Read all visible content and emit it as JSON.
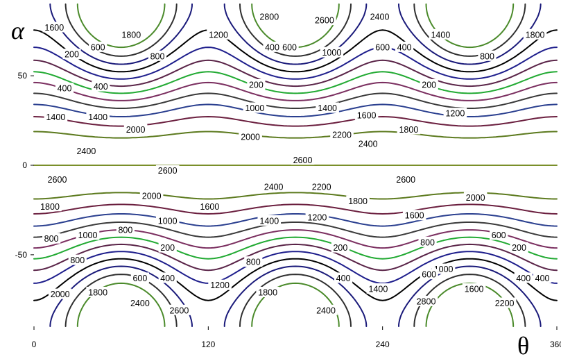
{
  "chart_data": {
    "type": "contour",
    "title": "",
    "xlabel": "θ",
    "ylabel": "α",
    "xlim": [
      0,
      360
    ],
    "ylim": [
      -90,
      90
    ],
    "x_ticks": [
      "0",
      "120",
      "240",
      "360"
    ],
    "y_ticks": [
      "50",
      "0",
      "-50"
    ],
    "grid": false,
    "legend": "none",
    "function": "z = 1400 + 1200*cos(2*alpha) + 240*cos(3*theta)*(1 - cos(2*alpha))",
    "levels": [
      200,
      400,
      600,
      800,
      1000,
      1200,
      1400,
      1600,
      1800,
      2000,
      2200,
      2400,
      2600,
      2800
    ],
    "level_colors": [
      "#4a8a2a",
      "#2f2f2f",
      "#1a1a7a",
      "#000000",
      "#1e1e8c",
      "#5a2448",
      "#22aa33",
      "#7b2f60",
      "#3a3a3a",
      "#2a3f8f",
      "#6b1f3f",
      "#5c7a1e",
      "#7a8f2a",
      "#2f6bbf"
    ],
    "minima_centers": [
      {
        "theta": 20,
        "alpha": 60
      },
      {
        "theta": 140,
        "alpha": 60
      },
      {
        "theta": 260,
        "alpha": 60
      },
      {
        "theta": 80,
        "alpha": -60
      },
      {
        "theta": 200,
        "alpha": -60
      },
      {
        "theta": 320,
        "alpha": -60
      }
    ],
    "contour_labels": [
      {
        "text": "2800",
        "theta": 162,
        "alpha": 83
      },
      {
        "text": "2600",
        "theta": 200,
        "alpha": 81
      },
      {
        "text": "2400",
        "theta": 238,
        "alpha": 83
      },
      {
        "text": "1600",
        "theta": 14,
        "alpha": 77
      },
      {
        "text": "1800",
        "theta": 67,
        "alpha": 73
      },
      {
        "text": "1200",
        "theta": 127,
        "alpha": 73
      },
      {
        "text": "1400",
        "theta": 280,
        "alpha": 73
      },
      {
        "text": "1800",
        "theta": 345,
        "alpha": 73
      },
      {
        "text": "600",
        "theta": 44,
        "alpha": 66
      },
      {
        "text": "400",
        "theta": 164,
        "alpha": 66
      },
      {
        "text": "600",
        "theta": 176,
        "alpha": 66
      },
      {
        "text": "600",
        "theta": 240,
        "alpha": 66
      },
      {
        "text": "400",
        "theta": 255,
        "alpha": 66
      },
      {
        "text": "200",
        "theta": 26,
        "alpha": 62
      },
      {
        "text": "800",
        "theta": 85,
        "alpha": 61
      },
      {
        "text": "1000",
        "theta": 205,
        "alpha": 63
      },
      {
        "text": "800",
        "theta": 312,
        "alpha": 61
      },
      {
        "text": "400",
        "theta": 21,
        "alpha": 43
      },
      {
        "text": "400",
        "theta": 46,
        "alpha": 44
      },
      {
        "text": "200",
        "theta": 153,
        "alpha": 45
      },
      {
        "text": "200",
        "theta": 272,
        "alpha": 45
      },
      {
        "text": "1000",
        "theta": 152,
        "alpha": 32
      },
      {
        "text": "1400",
        "theta": 202,
        "alpha": 32
      },
      {
        "text": "1400",
        "theta": 15,
        "alpha": 27
      },
      {
        "text": "1400",
        "theta": 44,
        "alpha": 27
      },
      {
        "text": "1600",
        "theta": 229,
        "alpha": 28
      },
      {
        "text": "1200",
        "theta": 290,
        "alpha": 29
      },
      {
        "text": "2000",
        "theta": 70,
        "alpha": 20
      },
      {
        "text": "2000",
        "theta": 149,
        "alpha": 16
      },
      {
        "text": "2200",
        "theta": 212,
        "alpha": 17
      },
      {
        "text": "1800",
        "theta": 258,
        "alpha": 20
      },
      {
        "text": "2400",
        "theta": 36,
        "alpha": 8
      },
      {
        "text": "2400",
        "theta": 230,
        "alpha": 12
      },
      {
        "text": "2600",
        "theta": 185,
        "alpha": 3
      },
      {
        "text": "2600",
        "theta": 92,
        "alpha": -3
      },
      {
        "text": "2600",
        "theta": 16,
        "alpha": -8
      },
      {
        "text": "2600",
        "theta": 256,
        "alpha": -8
      },
      {
        "text": "2400",
        "theta": 165,
        "alpha": -12
      },
      {
        "text": "2200",
        "theta": 198,
        "alpha": -12
      },
      {
        "text": "2000",
        "theta": 81,
        "alpha": -17
      },
      {
        "text": "2000",
        "theta": 304,
        "alpha": -18
      },
      {
        "text": "1800",
        "theta": 11,
        "alpha": -23
      },
      {
        "text": "1600",
        "theta": 121,
        "alpha": -23
      },
      {
        "text": "1800",
        "theta": 223,
        "alpha": -20
      },
      {
        "text": "1000",
        "theta": 92,
        "alpha": -31
      },
      {
        "text": "1400",
        "theta": 162,
        "alpha": -31
      },
      {
        "text": "1200",
        "theta": 195,
        "alpha": -29
      },
      {
        "text": "1600",
        "theta": 262,
        "alpha": -28
      },
      {
        "text": "800",
        "theta": 63,
        "alpha": -36
      },
      {
        "text": "1000",
        "theta": 37,
        "alpha": -39
      },
      {
        "text": "600",
        "theta": 320,
        "alpha": -39
      },
      {
        "text": "800",
        "theta": 12,
        "alpha": -41
      },
      {
        "text": "800",
        "theta": 271,
        "alpha": -43
      },
      {
        "text": "200",
        "theta": 92,
        "alpha": -46
      },
      {
        "text": "200",
        "theta": 211,
        "alpha": -46
      },
      {
        "text": "200",
        "theta": 334,
        "alpha": -46
      },
      {
        "text": "800",
        "theta": 30,
        "alpha": -53
      },
      {
        "text": "800",
        "theta": 151,
        "alpha": -54
      },
      {
        "text": "1000",
        "theta": 282,
        "alpha": -58
      },
      {
        "text": "600",
        "theta": 73,
        "alpha": -63
      },
      {
        "text": "400",
        "theta": 92,
        "alpha": -63
      },
      {
        "text": "400",
        "theta": 213,
        "alpha": -63
      },
      {
        "text": "600",
        "theta": 272,
        "alpha": -61
      },
      {
        "text": "400",
        "theta": 337,
        "alpha": -63
      },
      {
        "text": "400",
        "theta": 350,
        "alpha": -63
      },
      {
        "text": "1200",
        "theta": 128,
        "alpha": -67
      },
      {
        "text": "1400",
        "theta": 237,
        "alpha": -69
      },
      {
        "text": "1600",
        "theta": 303,
        "alpha": -69
      },
      {
        "text": "2000",
        "theta": 18,
        "alpha": -72
      },
      {
        "text": "1800",
        "theta": 44,
        "alpha": -71
      },
      {
        "text": "1800",
        "theta": 161,
        "alpha": -71
      },
      {
        "text": "2400",
        "theta": 73,
        "alpha": -77
      },
      {
        "text": "2800",
        "theta": 270,
        "alpha": -76
      },
      {
        "text": "2600",
        "theta": 100,
        "alpha": -81
      },
      {
        "text": "2400",
        "theta": 201,
        "alpha": -81
      },
      {
        "text": "2200",
        "theta": 324,
        "alpha": -77
      }
    ]
  }
}
